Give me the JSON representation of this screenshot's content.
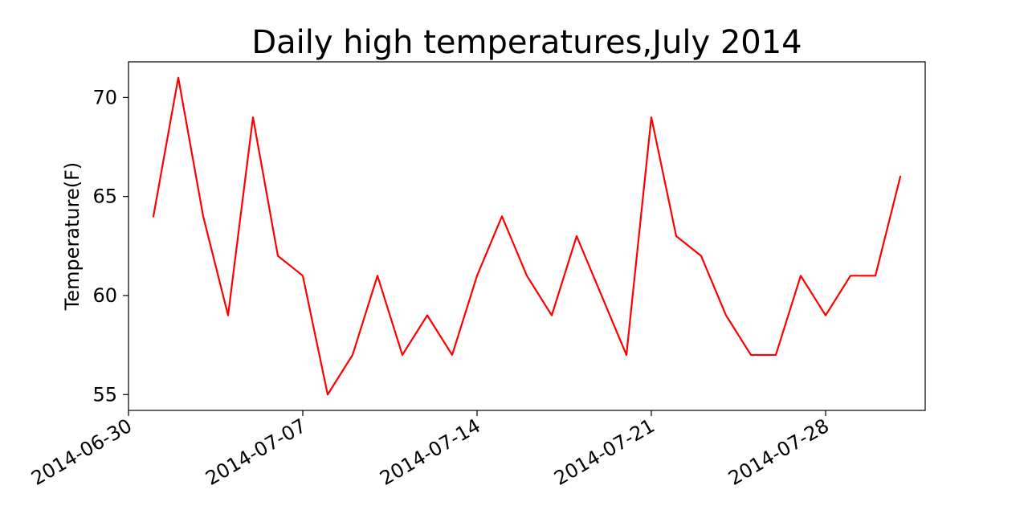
{
  "chart_data": {
    "type": "line",
    "title": "Daily high temperatures,July 2014",
    "xlabel": "",
    "ylabel": "Temperature(F)",
    "x": [
      "2014-07-01",
      "2014-07-02",
      "2014-07-03",
      "2014-07-04",
      "2014-07-05",
      "2014-07-06",
      "2014-07-07",
      "2014-07-08",
      "2014-07-09",
      "2014-07-10",
      "2014-07-11",
      "2014-07-12",
      "2014-07-13",
      "2014-07-14",
      "2014-07-15",
      "2014-07-16",
      "2014-07-17",
      "2014-07-18",
      "2014-07-19",
      "2014-07-20",
      "2014-07-21",
      "2014-07-22",
      "2014-07-23",
      "2014-07-24",
      "2014-07-25",
      "2014-07-26",
      "2014-07-27",
      "2014-07-28",
      "2014-07-29",
      "2014-07-30",
      "2014-07-31"
    ],
    "series": [
      {
        "color": "#ff0000",
        "values": [
          64,
          71,
          64,
          59,
          69,
          62,
          61,
          55,
          57,
          61,
          57,
          59,
          57,
          61,
          64,
          61,
          59,
          63,
          60,
          57,
          69,
          63,
          62,
          59,
          57,
          57,
          61,
          59,
          61,
          61,
          66
        ]
      }
    ],
    "xlim": [
      "2014-06-30",
      "2014-08-01"
    ],
    "ylim": [
      54.2,
      71.8
    ],
    "xticks": [
      "2014-06-30",
      "2014-07-07",
      "2014-07-14",
      "2014-07-21",
      "2014-07-28"
    ],
    "yticks": [
      55,
      60,
      65,
      70
    ],
    "grid": false,
    "legend": "none"
  }
}
